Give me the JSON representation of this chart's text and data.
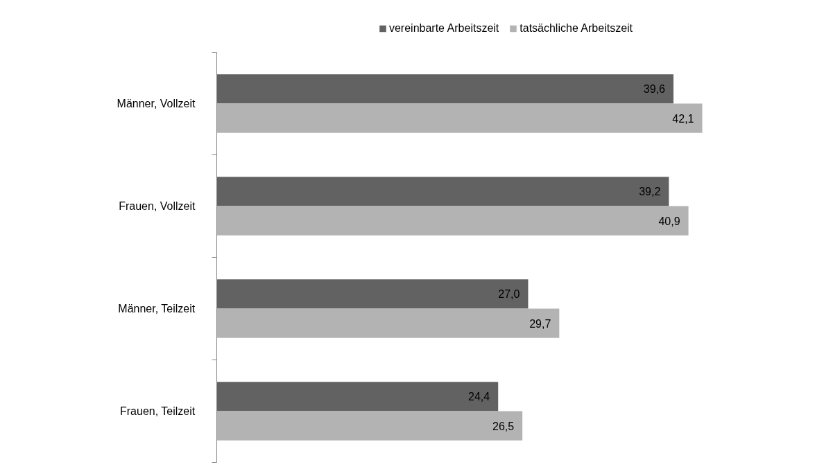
{
  "chart_data": {
    "type": "bar",
    "orientation": "horizontal",
    "categories": [
      "Männer, Vollzeit",
      "Frauen, Vollzeit",
      "Männer, Teilzeit",
      "Frauen, Teilzeit"
    ],
    "series": [
      {
        "name": "vereinbarte Arbeitszeit",
        "color": "#626262",
        "values": [
          39.6,
          39.2,
          27.0,
          24.4
        ],
        "value_labels": [
          "39,6",
          "39,2",
          "27,0",
          "24,4"
        ]
      },
      {
        "name": "tatsächliche Arbeitszeit",
        "color": "#b3b3b3",
        "values": [
          42.1,
          40.9,
          29.7,
          26.5
        ],
        "value_labels": [
          "42,1",
          "40,9",
          "29,7",
          "26,5"
        ]
      }
    ],
    "legend": "top",
    "grid": false,
    "tick_labels": "y"
  }
}
